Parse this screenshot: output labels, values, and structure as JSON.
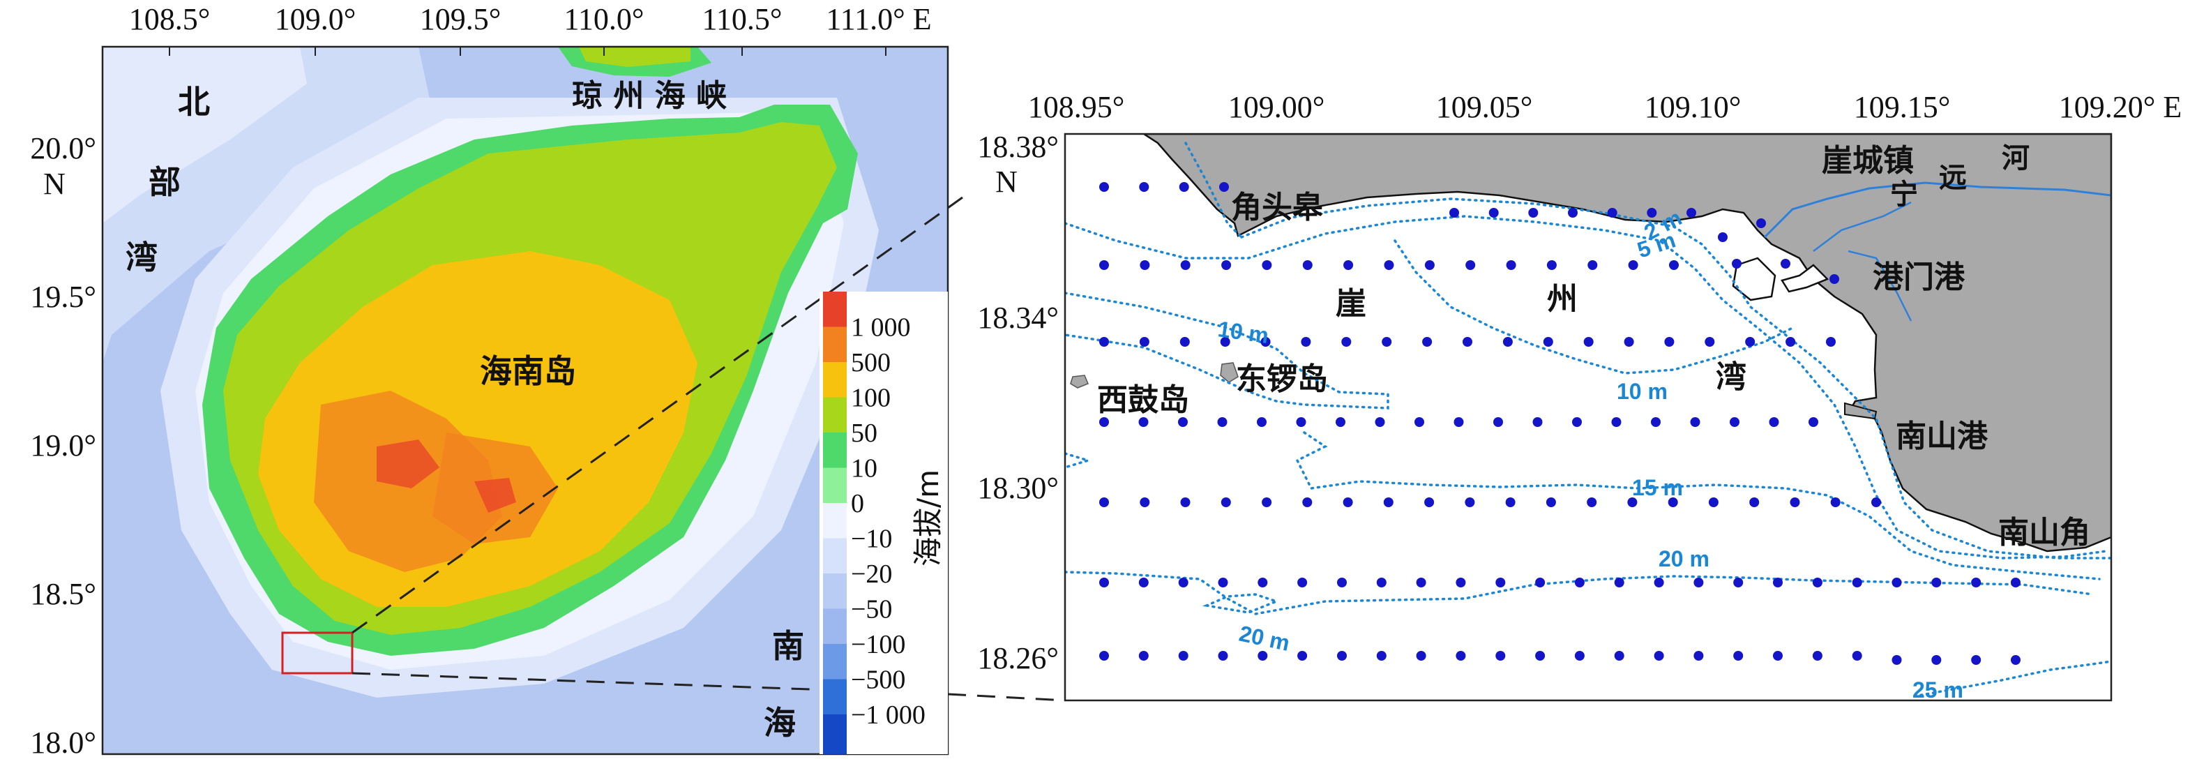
{
  "left_map": {
    "lon_ticks": [
      "108.5°",
      "109.0°",
      "109.5°",
      "110.0°",
      "110.5°",
      "111.0° E"
    ],
    "lat_ticks": [
      "20.0°",
      "19.5°",
      "19.0°",
      "18.5°",
      "18.0°"
    ],
    "lat_unit": "N",
    "labels": {
      "beibu_1": "北",
      "beibu_2": "部",
      "beibu_3": "湾",
      "strait": "琼 州 海 峡",
      "island": "海南岛",
      "nanhai_1": "南",
      "nanhai_2": "海"
    },
    "legend": {
      "title": "海拔/m",
      "classes": [
        {
          "label": "1 000",
          "color": "#e8412a"
        },
        {
          "label": "500",
          "color": "#f2821f"
        },
        {
          "label": "100",
          "color": "#f6c20e"
        },
        {
          "label": "50",
          "color": "#a8d61a"
        },
        {
          "label": "10",
          "color": "#4fd96a"
        },
        {
          "label": "0",
          "color": "#8ff09a"
        },
        {
          "label": "−10",
          "color": "#eef3ff"
        },
        {
          "label": "−20",
          "color": "#d6e2fb"
        },
        {
          "label": "−50",
          "color": "#b9cdf4"
        },
        {
          "label": "−100",
          "color": "#9cb8ee"
        },
        {
          "label": "−500",
          "color": "#6d9ae6"
        },
        {
          "label": "−1 000",
          "color": "#2f6fd8"
        }
      ],
      "deep_color": "#1548c4"
    }
  },
  "right_map": {
    "lon_ticks": [
      "108.95°",
      "109.00°",
      "109.05°",
      "109.10°",
      "109.15°",
      "109.20° E"
    ],
    "lat_ticks": [
      "18.38°",
      "18.34°",
      "18.30°",
      "18.26°"
    ],
    "lat_unit": "N",
    "labels": {
      "jiaotougao": "角头皋",
      "yachengzhen": "崖城镇",
      "river_ning": "宁",
      "river_yuan": "远",
      "river_he": "河",
      "ganmengang": "港门港",
      "ya": "崖",
      "zhou": "州",
      "wan": "湾",
      "xigudao": "西鼓岛",
      "dongluodao": "东锣岛",
      "nanshangang": "南山港",
      "nanshanjiao": "南山角"
    },
    "contours": [
      "2 m",
      "5 m",
      "10 m",
      "10 m",
      "15 m",
      "20 m",
      "20 m",
      "25 m"
    ]
  },
  "colors": {
    "land": "#a9a9a9",
    "station": "#1414c8",
    "contour": "#1a86d4",
    "box": "#d42020"
  }
}
